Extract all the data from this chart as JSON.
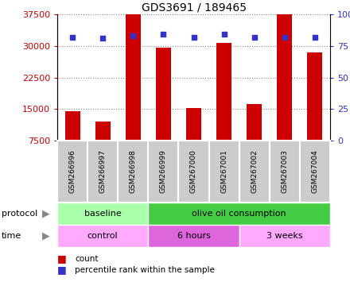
{
  "title": "GDS3691 / 189465",
  "samples": [
    "GSM266996",
    "GSM266997",
    "GSM266998",
    "GSM266999",
    "GSM267000",
    "GSM267001",
    "GSM267002",
    "GSM267003",
    "GSM267004"
  ],
  "counts": [
    14500,
    12000,
    37500,
    29500,
    15200,
    30700,
    16200,
    37500,
    28500
  ],
  "percentile_ranks": [
    82,
    81,
    83,
    84,
    82,
    84,
    82,
    82,
    82
  ],
  "ymin": 7500,
  "ymax": 37500,
  "yticks": [
    7500,
    15000,
    22500,
    30000,
    37500
  ],
  "right_yticks": [
    0,
    25,
    50,
    75,
    100
  ],
  "bar_color": "#cc0000",
  "dot_color": "#3333cc",
  "protocol_groups": [
    {
      "label": "baseline",
      "start": 0,
      "end": 2,
      "color": "#aaffaa"
    },
    {
      "label": "olive oil consumption",
      "start": 3,
      "end": 8,
      "color": "#44cc44"
    }
  ],
  "time_groups": [
    {
      "label": "control",
      "start": 0,
      "end": 2,
      "color": "#ffaaff"
    },
    {
      "label": "6 hours",
      "start": 3,
      "end": 5,
      "color": "#dd66dd"
    },
    {
      "label": "3 weeks",
      "start": 6,
      "end": 8,
      "color": "#ffaaff"
    }
  ],
  "legend_count_label": "count",
  "legend_pct_label": "percentile rank within the sample",
  "axis_label_color_left": "#cc0000",
  "axis_label_color_right": "#3333cc",
  "protocol_label": "protocol",
  "time_label": "time",
  "label_arrow_color": "#888888"
}
